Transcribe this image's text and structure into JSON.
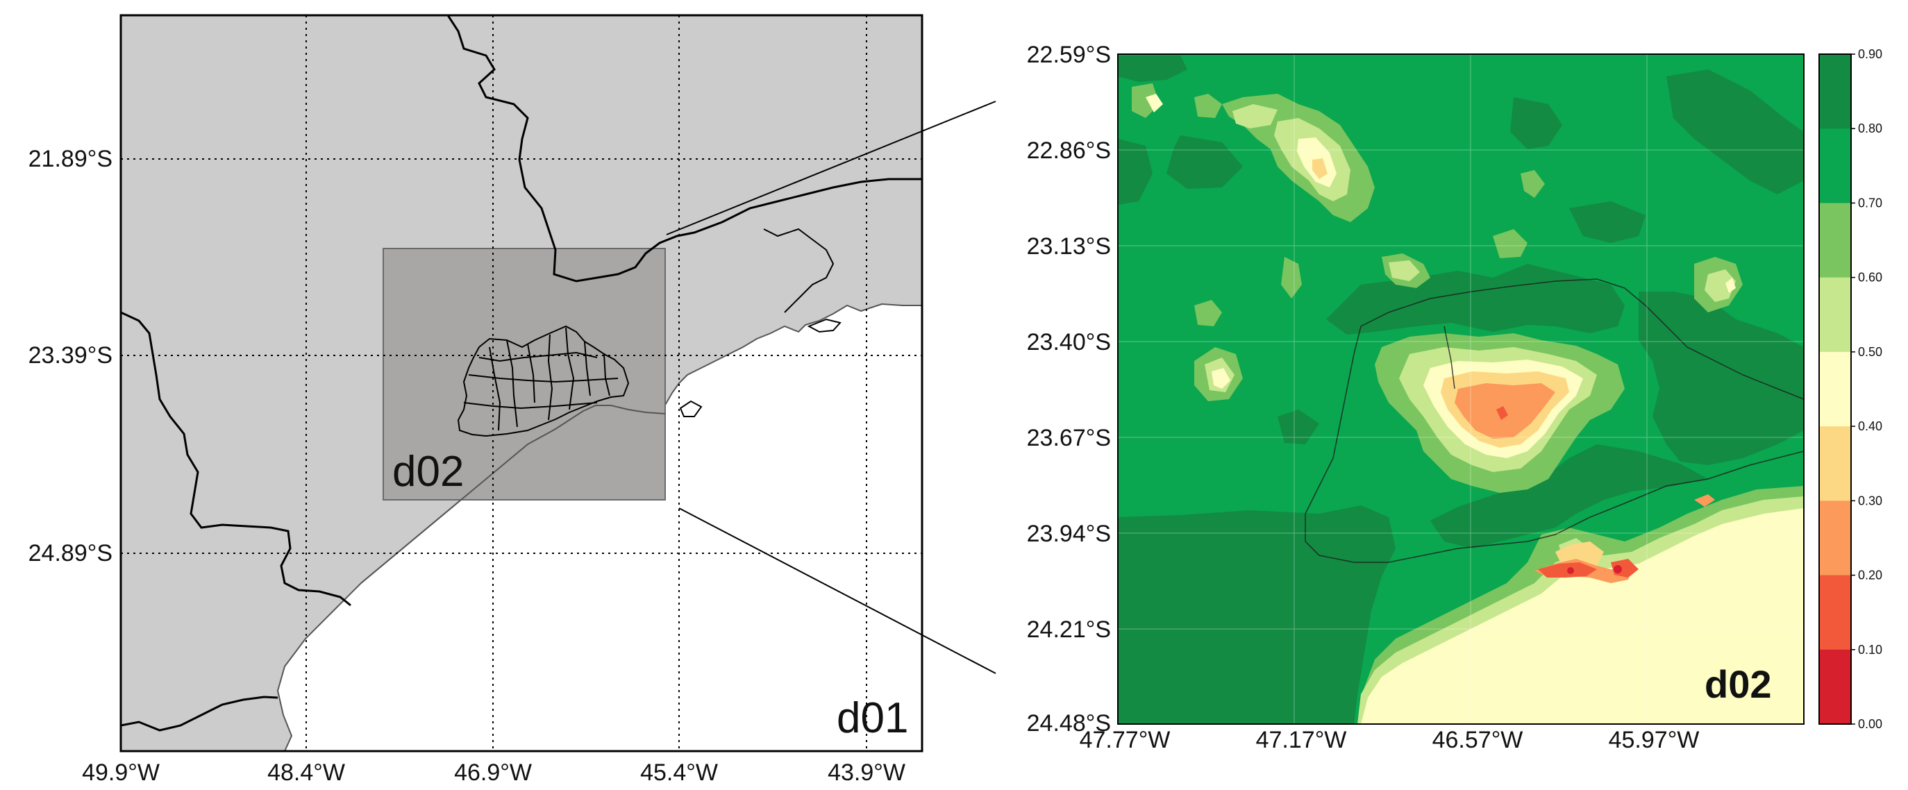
{
  "left_map": {
    "domain_label": "d01",
    "inner_domain_label": "d02",
    "lat_ticks": [
      "21.89°S",
      "23.39°S",
      "24.89°S"
    ],
    "lon_ticks": [
      "49.9°W",
      "48.4°W",
      "46.9°W",
      "45.4°W",
      "43.9°W"
    ],
    "colors": {
      "land": "#cccccc",
      "sea": "#ffffff",
      "inner_box": "#a9a6a6",
      "grid": "#000000"
    }
  },
  "right_map": {
    "domain_label": "d02",
    "lat_ticks": [
      "22.59°S",
      "22.86°S",
      "23.13°S",
      "23.40°S",
      "23.67°S",
      "23.94°S",
      "24.21°S",
      "24.48°S"
    ],
    "lon_ticks": [
      "47.77°W",
      "47.17°W",
      "46.57°W",
      "45.97°W"
    ]
  },
  "colorbar": {
    "ticks": [
      "0.90",
      "0.80",
      "0.70",
      "0.60",
      "0.50",
      "0.40",
      "0.30",
      "0.20",
      "0.10",
      "0.00"
    ],
    "bins": [
      {
        "range": "0.80-0.90",
        "color": "#138b43"
      },
      {
        "range": "0.70-0.80",
        "color": "#0aa650"
      },
      {
        "range": "0.60-0.70",
        "color": "#7ac55f"
      },
      {
        "range": "0.50-0.60",
        "color": "#c6e78e"
      },
      {
        "range": "0.40-0.50",
        "color": "#fefdc3"
      },
      {
        "range": "0.30-0.40",
        "color": "#fdd884"
      },
      {
        "range": "0.20-0.30",
        "color": "#fb9a5a"
      },
      {
        "range": "0.10-0.20",
        "color": "#f2593a"
      },
      {
        "range": "0.00-0.10",
        "color": "#d7202e"
      }
    ]
  }
}
